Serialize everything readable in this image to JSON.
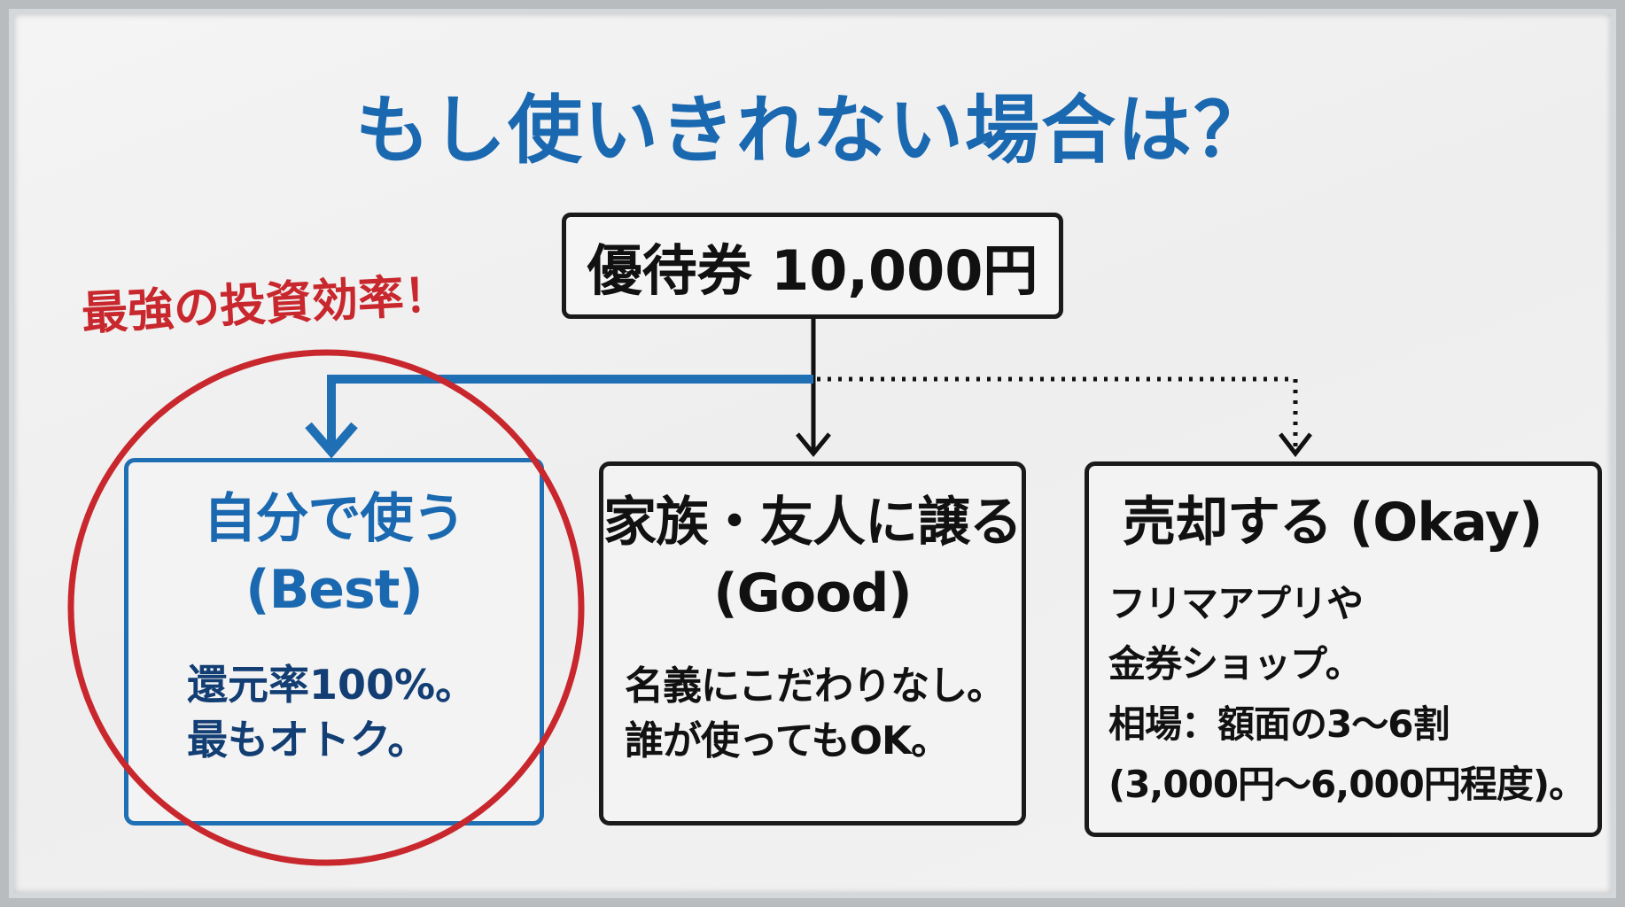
{
  "title": "もし使いきれない場合は？",
  "source": "優待券 10,000円",
  "tagline": "最強の投資効率！",
  "options": [
    {
      "title": [
        "自分で使う",
        "(Best)"
      ],
      "body": [
        "還元率100%。",
        "最もオトク。"
      ]
    },
    {
      "title": [
        "家族・友人に譲る",
        "(Good)"
      ],
      "body": [
        "名義にこだわりなし。",
        "誰が使ってもOK。"
      ]
    },
    {
      "title": [
        "売却する (Okay)"
      ],
      "body": [
        "フリマアプリや",
        "金券ショップ。",
        "相場：額面の3〜6割",
        "(3,000円〜6,000円程度)。"
      ]
    }
  ],
  "colors": {
    "title": "#1a68b0",
    "best": "#1f6fb5",
    "highlight": "#c8282d",
    "text": "#111111"
  }
}
